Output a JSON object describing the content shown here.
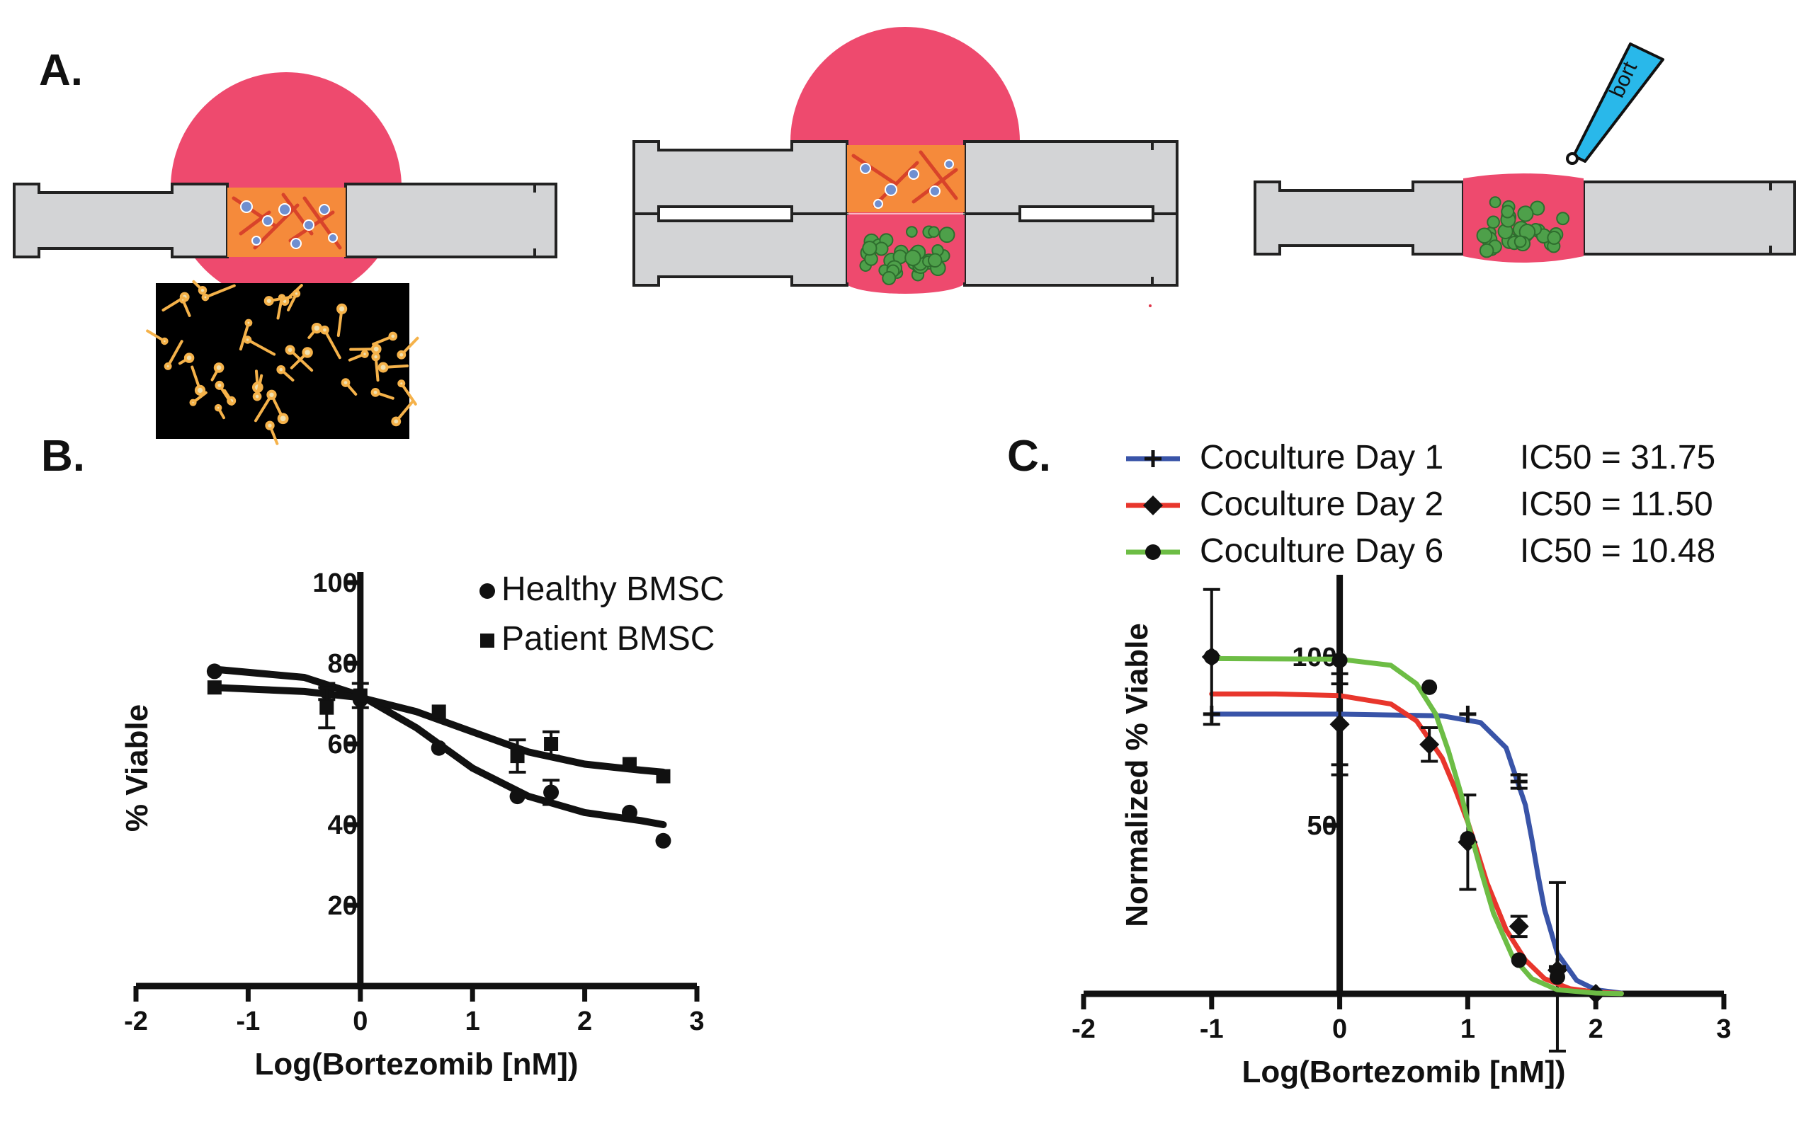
{
  "panel_labels": {
    "a": "A.",
    "b": "B.",
    "c": "C."
  },
  "diagram": {
    "pipette_label": "bort"
  },
  "colors": {
    "gel_pink": "#ee4a6e",
    "housing_gray": "#d3d4d6",
    "pipette_blue": "#29b8ea",
    "matrix_orange": "#f58a3b"
  },
  "chart_data": [
    {
      "type": "scatter",
      "panel": "B",
      "xlabel": "Log(Bortezomib [nM])",
      "ylabel": "% Viable",
      "xlim": [
        -2,
        3
      ],
      "ylim": [
        0,
        100
      ],
      "xticks": [
        "-2",
        "-1",
        "0",
        "1",
        "2",
        "3"
      ],
      "yticks": [
        "20",
        "40",
        "60",
        "80",
        "100"
      ],
      "legend_position": "top-right",
      "series": [
        {
          "name": "Healthy BMSC",
          "marker": "circle",
          "x": [
            -1.3,
            -0.3,
            0,
            0.7,
            1.4,
            1.7,
            2.4,
            2.7
          ],
          "y": [
            78,
            73,
            71,
            59,
            47,
            48,
            43,
            36
          ],
          "err": [
            0,
            2,
            0,
            0,
            0,
            3,
            0,
            0
          ],
          "fit_x": [
            -1.3,
            -0.5,
            0,
            0.5,
            1.0,
            1.5,
            2.0,
            2.5,
            2.7
          ],
          "fit_y": [
            78.5,
            76.5,
            72,
            64,
            54,
            47,
            43,
            41,
            40
          ]
        },
        {
          "name": "Patient BMSC",
          "marker": "square",
          "x": [
            -1.3,
            -0.3,
            0,
            0.7,
            1.4,
            1.7,
            2.4,
            2.7
          ],
          "y": [
            74,
            69,
            72,
            68,
            57,
            60,
            55,
            52
          ],
          "err": [
            0,
            5,
            3,
            0,
            4,
            3,
            0,
            0
          ],
          "fit_x": [
            -1.3,
            -0.5,
            0,
            0.5,
            1.0,
            1.5,
            2.0,
            2.5,
            2.7
          ],
          "fit_y": [
            74,
            73,
            71.5,
            68,
            63,
            58,
            55,
            53.5,
            53
          ]
        }
      ]
    },
    {
      "type": "line",
      "panel": "C",
      "xlabel": "Log(Bortezomib [nM])",
      "ylabel": "Normalized % Viable",
      "xlim": [
        -2,
        3
      ],
      "ylim": [
        0,
        100
      ],
      "xticks": [
        "-2",
        "-1",
        "0",
        "1",
        "2",
        "3"
      ],
      "yticks": [
        "50",
        "100"
      ],
      "legend_position": "top",
      "series": [
        {
          "name": "Coculture Day 1",
          "annotation": "IC50 = 31.75",
          "color": "#3954a8",
          "marker": "plus",
          "x": [
            -1,
            0,
            1,
            1.4,
            1.7,
            2
          ],
          "y": [
            83,
            80,
            83,
            63,
            8,
            0
          ],
          "err": [
            0,
            15,
            0,
            2,
            25,
            0
          ],
          "fit_x": [
            -1,
            0.0,
            0.8,
            1.1,
            1.3,
            1.45,
            1.5,
            1.55,
            1.6,
            1.7,
            1.85,
            2.0,
            2.2
          ],
          "fit_y": [
            83,
            83,
            82.5,
            80.5,
            73,
            56,
            46,
            35,
            25,
            12,
            4,
            1.2,
            0.2
          ]
        },
        {
          "name": "Coculture Day 2",
          "annotation": "IC50 = 11.50",
          "color": "#e8362c",
          "marker": "diamond",
          "x": [
            -1,
            0,
            0.7,
            1,
            1.4,
            1.7,
            2
          ],
          "y": [
            100,
            80,
            74,
            45,
            20,
            7,
            0
          ],
          "err": [
            0,
            12,
            5,
            14,
            3,
            0,
            0
          ],
          "fit_x": [
            -1,
            -0.5,
            0.0,
            0.4,
            0.6,
            0.8,
            0.9,
            1.0,
            1.06,
            1.15,
            1.3,
            1.45,
            1.6,
            1.8,
            2.0,
            2.2
          ],
          "fit_y": [
            89,
            89,
            88.5,
            86,
            81,
            70,
            61,
            51,
            44,
            33,
            19,
            10,
            4.5,
            1.5,
            0.5,
            0.1
          ]
        },
        {
          "name": "Coculture Day 6",
          "annotation": "IC50 = 10.48",
          "color": "#6dbd45",
          "marker": "circle",
          "x": [
            -1,
            0,
            0.7,
            1,
            1.4,
            1.7
          ],
          "y": [
            100,
            99,
            91,
            46,
            10,
            5
          ],
          "err": [
            20,
            0,
            0,
            0,
            0,
            0
          ],
          "fit_x": [
            -1,
            0.0,
            0.4,
            0.6,
            0.75,
            0.85,
            0.95,
            1.02,
            1.1,
            1.2,
            1.35,
            1.5,
            1.7,
            2.0,
            2.2
          ],
          "fit_y": [
            99.5,
            99.3,
            97.5,
            92,
            83,
            72,
            59,
            48,
            37,
            24,
            11,
            4.5,
            1.2,
            0.2,
            0.05
          ]
        }
      ]
    }
  ]
}
